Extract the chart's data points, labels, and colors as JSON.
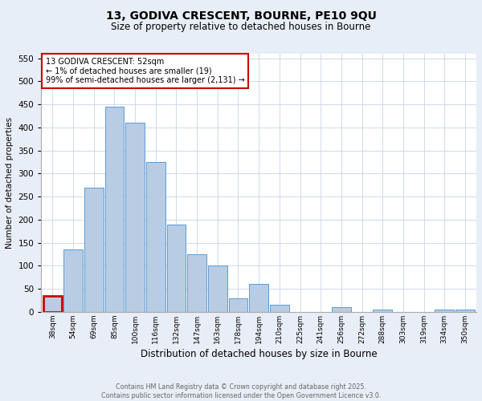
{
  "title_line1": "13, GODIVA CRESCENT, BOURNE, PE10 9QU",
  "title_line2": "Size of property relative to detached houses in Bourne",
  "categories": [
    "38sqm",
    "54sqm",
    "69sqm",
    "85sqm",
    "100sqm",
    "116sqm",
    "132sqm",
    "147sqm",
    "163sqm",
    "178sqm",
    "194sqm",
    "210sqm",
    "225sqm",
    "241sqm",
    "256sqm",
    "272sqm",
    "288sqm",
    "303sqm",
    "319sqm",
    "334sqm",
    "350sqm"
  ],
  "values": [
    35,
    135,
    270,
    445,
    410,
    325,
    190,
    125,
    100,
    30,
    60,
    15,
    0,
    0,
    10,
    0,
    5,
    0,
    0,
    5,
    5
  ],
  "bar_color": "#b8cce4",
  "bar_edge_color": "#5b9bd5",
  "highlight_bar_index": 0,
  "highlight_color": "#cc0000",
  "ylabel": "Number of detached properties",
  "xlabel": "Distribution of detached houses by size in Bourne",
  "ylim": [
    0,
    560
  ],
  "yticks": [
    0,
    50,
    100,
    150,
    200,
    250,
    300,
    350,
    400,
    450,
    500,
    550
  ],
  "annotation_title": "13 GODIVA CRESCENT: 52sqm",
  "annotation_line1": "← 1% of detached houses are smaller (19)",
  "annotation_line2": "99% of semi-detached houses are larger (2,131) →",
  "annotation_box_color": "#cc0000",
  "footer_line1": "Contains HM Land Registry data © Crown copyright and database right 2025.",
  "footer_line2": "Contains public sector information licensed under the Open Government Licence v3.0.",
  "bg_color": "#e8eef7",
  "plot_bg_color": "#ffffff",
  "grid_color": "#c8d4e8"
}
